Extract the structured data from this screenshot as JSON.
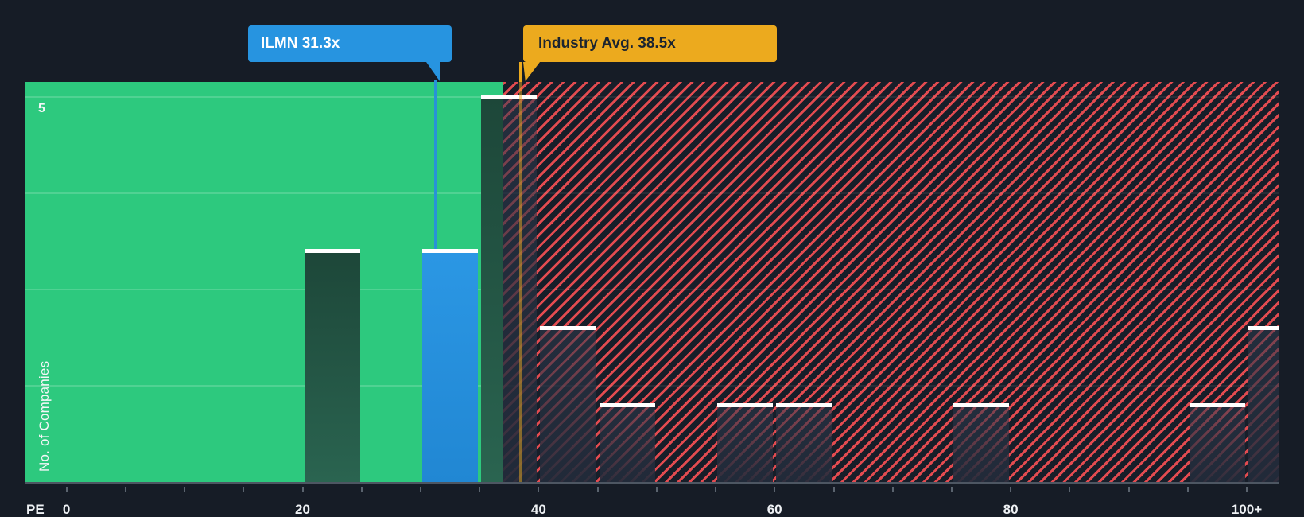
{
  "chart_data": {
    "type": "bar",
    "xlabel": "PE",
    "ylabel": "No. of Companies",
    "x_range": [
      0,
      100
    ],
    "x_minor_tick_step": 5,
    "x_ticks": [
      {
        "pe": 0,
        "label": "0"
      },
      {
        "pe": 20,
        "label": "20"
      },
      {
        "pe": 40,
        "label": "40"
      },
      {
        "pe": 60,
        "label": "60"
      },
      {
        "pe": 80,
        "label": "80"
      },
      {
        "pe": 100,
        "label": "100+"
      }
    ],
    "y_axis": {
      "label": "5",
      "label_value": 5,
      "gridline_values": [
        1.25,
        2.5,
        3.75,
        5
      ],
      "max": 5.2
    },
    "bars": [
      {
        "pe_from": 20,
        "pe_to": 25,
        "count": 3,
        "style": "muted"
      },
      {
        "pe_from": 30,
        "pe_to": 35,
        "count": 3,
        "style": "blue",
        "ticker": "ILMN"
      },
      {
        "pe_from": 35,
        "pe_to": 40,
        "count": 5,
        "style": "muted"
      },
      {
        "pe_from": 40,
        "pe_to": 45,
        "count": 2,
        "style": "muted"
      },
      {
        "pe_from": 45,
        "pe_to": 50,
        "count": 1,
        "style": "muted"
      },
      {
        "pe_from": 55,
        "pe_to": 60,
        "count": 1,
        "style": "muted"
      },
      {
        "pe_from": 60,
        "pe_to": 65,
        "count": 1,
        "style": "muted"
      },
      {
        "pe_from": 75,
        "pe_to": 80,
        "count": 1,
        "style": "muted"
      },
      {
        "pe_from": 95,
        "pe_to": 100,
        "count": 1,
        "style": "muted"
      },
      {
        "pe_from": 100,
        "pe_to": 103,
        "count": 2,
        "style": "muted",
        "open_ended": true
      }
    ],
    "markers": [
      {
        "id": "ilmn",
        "label": "ILMN 31.3x",
        "pe": 31.3,
        "color": "#2794e0",
        "text_color": "#ffffff"
      },
      {
        "id": "industry",
        "label": "Industry Avg. 38.5x",
        "pe": 38.5,
        "color": "#ecaa1e",
        "text_color": "#1b2430"
      }
    ],
    "zones": [
      {
        "name": "below-average-green",
        "pe_to": 37,
        "color": "#2dc97e"
      },
      {
        "name": "above-average-red-hatched",
        "pe_from": 37,
        "stripe_color": "#ee4d52"
      }
    ]
  },
  "colors": {
    "background": "#161c26",
    "green_zone": "#2dc97e",
    "hatch_stripe": "#ee4d52",
    "ilmn_blue": "#2794e0",
    "industry_yellow": "#ecaa1e",
    "bar_cap": "#ffffff",
    "axis_text": "#eef1f4"
  }
}
